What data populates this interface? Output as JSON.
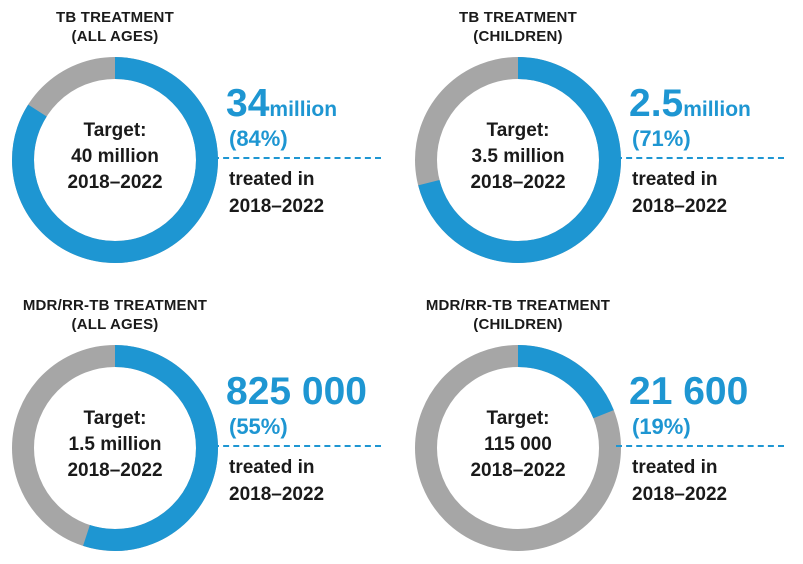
{
  "colors": {
    "accent": "#1e96d2",
    "remaining": "#a6a6a6"
  },
  "chart_data": [
    {
      "type": "pie",
      "title_line1": "TB TREATMENT",
      "title_line2": "(ALL AGES)",
      "target_label": "Target:",
      "target_value": "40 million",
      "target_period": "2018–2022",
      "achieved_value": "34",
      "achieved_unit": "million",
      "achieved_percent_label": "(84%)",
      "achieved_fraction": 0.84,
      "note_line1": "treated in",
      "note_line2": "2018–2022"
    },
    {
      "type": "pie",
      "title_line1": "TB TREATMENT",
      "title_line2": "(CHILDREN)",
      "target_label": "Target:",
      "target_value": "3.5 million",
      "target_period": "2018–2022",
      "achieved_value": "2.5",
      "achieved_unit": "million",
      "achieved_percent_label": "(71%)",
      "achieved_fraction": 0.71,
      "note_line1": "treated in",
      "note_line2": "2018–2022"
    },
    {
      "type": "pie",
      "title_line1": "MDR/RR-TB TREATMENT",
      "title_line2": "(ALL AGES)",
      "target_label": "Target:",
      "target_value": "1.5 million",
      "target_period": "2018–2022",
      "achieved_value": "825 000",
      "achieved_unit": "",
      "achieved_percent_label": "(55%)",
      "achieved_fraction": 0.55,
      "note_line1": "treated in",
      "note_line2": "2018–2022"
    },
    {
      "type": "pie",
      "title_line1": "MDR/RR-TB TREATMENT",
      "title_line2": "(CHILDREN)",
      "target_label": "Target:",
      "target_value": "115 000",
      "target_period": "2018–2022",
      "achieved_value": "21 600",
      "achieved_unit": "",
      "achieved_percent_label": "(19%)",
      "achieved_fraction": 0.19,
      "note_line1": "treated in",
      "note_line2": "2018–2022"
    }
  ]
}
